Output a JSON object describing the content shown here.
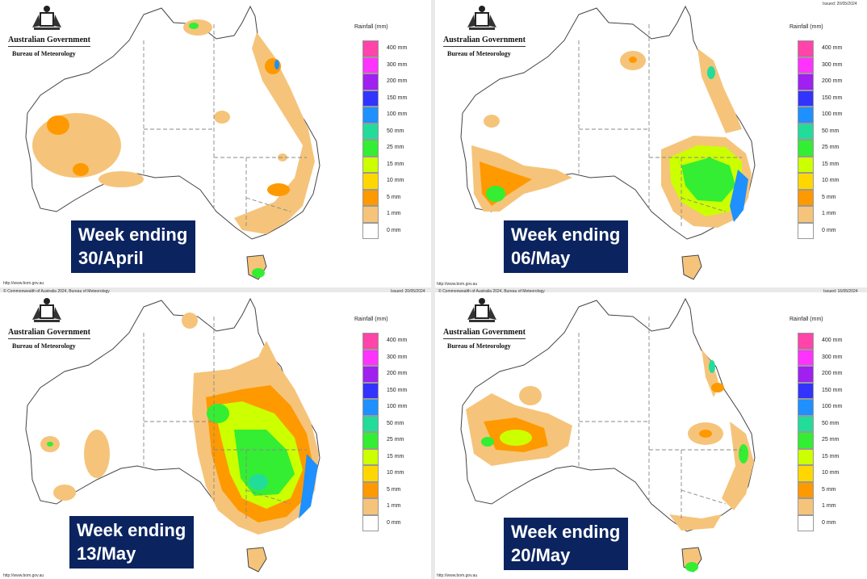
{
  "header": {
    "government": "Australian Government",
    "bureau": "Bureau of Meteorology"
  },
  "legend": {
    "title": "Rainfall (mm)",
    "bands": [
      {
        "label": "400 mm",
        "color": "#ff44aa"
      },
      {
        "label": "300 mm",
        "color": "#ff33ff"
      },
      {
        "label": "200 mm",
        "color": "#a020f0"
      },
      {
        "label": "150 mm",
        "color": "#3333ff"
      },
      {
        "label": "100 mm",
        "color": "#1e90ff"
      },
      {
        "label": "50 mm",
        "color": "#22dd99"
      },
      {
        "label": "25 mm",
        "color": "#33ee33"
      },
      {
        "label": "15 mm",
        "color": "#ccff00"
      },
      {
        "label": "10 mm",
        "color": "#ffd700"
      },
      {
        "label": "5 mm",
        "color": "#ff9900"
      },
      {
        "label": "1 mm",
        "color": "#f5c47a"
      },
      {
        "label": "0 mm",
        "color": "#ffffff"
      }
    ]
  },
  "panels": [
    {
      "week_line1": "Week ending",
      "week_line2": "30/April",
      "footer_left": "http://www.bom.gov.au",
      "footer_copyright": "© Commonwealth of Australia 2024, Bureau of Meteorology",
      "footer_issued": ""
    },
    {
      "week_line1": "Week ending",
      "week_line2": "06/May",
      "footer_left": "http://www.bom.gov.au",
      "footer_copyright": "",
      "footer_issued": "Issued: 20/05/2024"
    },
    {
      "week_line1": "Week ending",
      "week_line2": "13/May",
      "footer_left": "http://www.bom.gov.au",
      "footer_copyright": "© Commonwealth of Australia 2024, Bureau of Meteorology",
      "footer_issued": ""
    },
    {
      "week_line1": "Week ending",
      "week_line2": "20/May",
      "footer_left": "http://www.bom.gov.au",
      "footer_copyright": "",
      "footer_issued": "Issued: 16/05/2024"
    }
  ]
}
